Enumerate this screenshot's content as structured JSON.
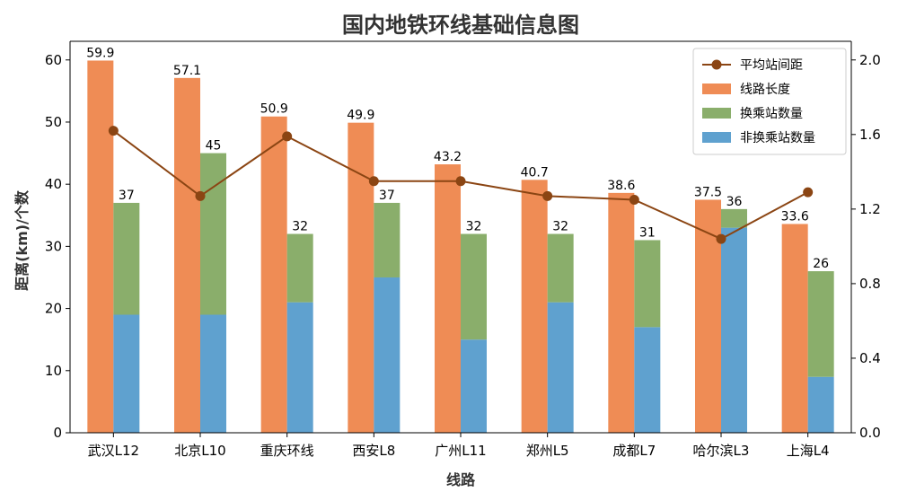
{
  "chart_data": {
    "type": "bar",
    "title": "国内地铁环线基础信息图",
    "xlabel": "线路",
    "ylabel": "距离(km)/个数",
    "categories": [
      "武汉L12",
      "北京L10",
      "重庆环线",
      "西安L8",
      "广州L11",
      "郑州L5",
      "成都L7",
      "哈尔滨L3",
      "上海L4"
    ],
    "ylim": [
      0,
      63
    ],
    "yticks": [
      0,
      10,
      20,
      30,
      40,
      50,
      60
    ],
    "y2lim": [
      0,
      2.1
    ],
    "y2ticks": [
      "0.0",
      "0.4",
      "0.8",
      "1.2",
      "1.6",
      "2.0"
    ],
    "legend_position": "top-right",
    "series": [
      {
        "name": "线路长度",
        "kind": "bar",
        "color": "#ef8c55",
        "values": [
          59.9,
          57.1,
          50.9,
          49.9,
          43.2,
          40.7,
          38.6,
          37.5,
          33.6
        ],
        "labels": [
          "59.9",
          "57.1",
          "50.9",
          "49.9",
          "43.2",
          "40.7",
          "38.6",
          "37.5",
          "33.6"
        ]
      },
      {
        "name": "换乘站数量",
        "kind": "stacked-bar-top",
        "color": "#8aae6b",
        "values": [
          18,
          26,
          11,
          12,
          17,
          11,
          14,
          3,
          17
        ]
      },
      {
        "name": "非换乘站数量",
        "kind": "stacked-bar-bottom",
        "color": "#5fa1cf",
        "values": [
          19,
          19,
          21,
          25,
          15,
          21,
          17,
          33,
          9
        ]
      },
      {
        "name": "平均站间距",
        "kind": "line",
        "axis": "right",
        "color": "#8b4513",
        "values": [
          1.62,
          1.27,
          1.59,
          1.35,
          1.35,
          1.27,
          1.25,
          1.04,
          1.29
        ]
      }
    ],
    "station_totals": [
      37,
      45,
      32,
      37,
      32,
      32,
      31,
      36,
      26
    ],
    "station_total_labels": [
      "37",
      "45",
      "32",
      "37",
      "32",
      "32",
      "31",
      "36",
      "26"
    ]
  }
}
